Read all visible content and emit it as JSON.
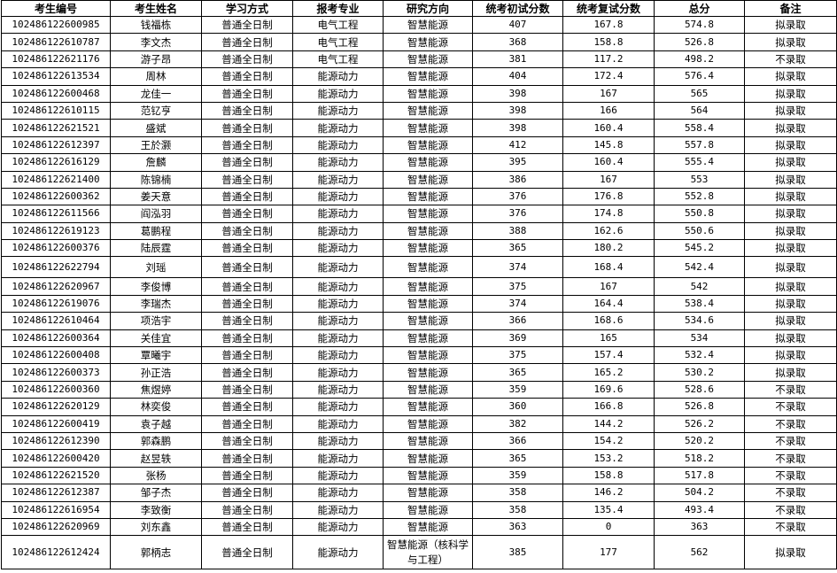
{
  "headers": [
    "考生编号",
    "考生姓名",
    "学习方式",
    "报考专业",
    "研究方向",
    "统考初试分数",
    "统考复试分数",
    "总分",
    "备注"
  ],
  "rows": [
    [
      "102486122600985",
      "钱福栋",
      "普通全日制",
      "电气工程",
      "智慧能源",
      "407",
      "167.8",
      "574.8",
      "拟录取"
    ],
    [
      "102486122610787",
      "李文杰",
      "普通全日制",
      "电气工程",
      "智慧能源",
      "368",
      "158.8",
      "526.8",
      "拟录取"
    ],
    [
      "102486122621176",
      "游子昂",
      "普通全日制",
      "电气工程",
      "智慧能源",
      "381",
      "117.2",
      "498.2",
      "不录取"
    ],
    [
      "102486122613534",
      "周林",
      "普通全日制",
      "能源动力",
      "智慧能源",
      "404",
      "172.4",
      "576.4",
      "拟录取"
    ],
    [
      "102486122600468",
      "龙佳一",
      "普通全日制",
      "能源动力",
      "智慧能源",
      "398",
      "167",
      "565",
      "拟录取"
    ],
    [
      "102486122610115",
      "范钇亨",
      "普通全日制",
      "能源动力",
      "智慧能源",
      "398",
      "166",
      "564",
      "拟录取"
    ],
    [
      "102486122621521",
      "盛斌",
      "普通全日制",
      "能源动力",
      "智慧能源",
      "398",
      "160.4",
      "558.4",
      "拟录取"
    ],
    [
      "102486122612397",
      "王於灏",
      "普通全日制",
      "能源动力",
      "智慧能源",
      "412",
      "145.8",
      "557.8",
      "拟录取"
    ],
    [
      "102486122616129",
      "詹麟",
      "普通全日制",
      "能源动力",
      "智慧能源",
      "395",
      "160.4",
      "555.4",
      "拟录取"
    ],
    [
      "102486122621400",
      "陈锦楠",
      "普通全日制",
      "能源动力",
      "智慧能源",
      "386",
      "167",
      "553",
      "拟录取"
    ],
    [
      "102486122600362",
      "姜天意",
      "普通全日制",
      "能源动力",
      "智慧能源",
      "376",
      "176.8",
      "552.8",
      "拟录取"
    ],
    [
      "102486122611566",
      "阎泓羽",
      "普通全日制",
      "能源动力",
      "智慧能源",
      "376",
      "174.8",
      "550.8",
      "拟录取"
    ],
    [
      "102486122619123",
      "葛鹏程",
      "普通全日制",
      "能源动力",
      "智慧能源",
      "388",
      "162.6",
      "550.6",
      "拟录取"
    ],
    [
      "102486122600376",
      "陆辰霆",
      "普通全日制",
      "能源动力",
      "智慧能源",
      "365",
      "180.2",
      "545.2",
      "拟录取"
    ],
    [
      "102486122622794",
      "刘瑶",
      "普通全日制",
      "能源动力",
      "智慧能源",
      "374",
      "168.4",
      "542.4",
      "拟录取"
    ],
    [
      "102486122620967",
      "李俊博",
      "普通全日制",
      "能源动力",
      "智慧能源",
      "375",
      "167",
      "542",
      "拟录取"
    ],
    [
      "102486122619076",
      "李瑞杰",
      "普通全日制",
      "能源动力",
      "智慧能源",
      "374",
      "164.4",
      "538.4",
      "拟录取"
    ],
    [
      "102486122610464",
      "项浩宇",
      "普通全日制",
      "能源动力",
      "智慧能源",
      "366",
      "168.6",
      "534.6",
      "拟录取"
    ],
    [
      "102486122600364",
      "关佳宜",
      "普通全日制",
      "能源动力",
      "智慧能源",
      "369",
      "165",
      "534",
      "拟录取"
    ],
    [
      "102486122600408",
      "覃曦宇",
      "普通全日制",
      "能源动力",
      "智慧能源",
      "375",
      "157.4",
      "532.4",
      "拟录取"
    ],
    [
      "102486122600373",
      "孙正浩",
      "普通全日制",
      "能源动力",
      "智慧能源",
      "365",
      "165.2",
      "530.2",
      "拟录取"
    ],
    [
      "102486122600360",
      "焦煜婷",
      "普通全日制",
      "能源动力",
      "智慧能源",
      "359",
      "169.6",
      "528.6",
      "不录取"
    ],
    [
      "102486122620129",
      "林奕俊",
      "普通全日制",
      "能源动力",
      "智慧能源",
      "360",
      "166.8",
      "526.8",
      "不录取"
    ],
    [
      "102486122600419",
      "袁子越",
      "普通全日制",
      "能源动力",
      "智慧能源",
      "382",
      "144.2",
      "526.2",
      "不录取"
    ],
    [
      "102486122612390",
      "郭森鹏",
      "普通全日制",
      "能源动力",
      "智慧能源",
      "366",
      "154.2",
      "520.2",
      "不录取"
    ],
    [
      "102486122600420",
      "赵昱轶",
      "普通全日制",
      "能源动力",
      "智慧能源",
      "365",
      "153.2",
      "518.2",
      "不录取"
    ],
    [
      "102486122621520",
      "张杨",
      "普通全日制",
      "能源动力",
      "智慧能源",
      "359",
      "158.8",
      "517.8",
      "不录取"
    ],
    [
      "102486122612387",
      "邹子杰",
      "普通全日制",
      "能源动力",
      "智慧能源",
      "358",
      "146.2",
      "504.2",
      "不录取"
    ],
    [
      "102486122616954",
      "李致衡",
      "普通全日制",
      "能源动力",
      "智慧能源",
      "358",
      "135.4",
      "493.4",
      "不录取"
    ],
    [
      "102486122620969",
      "刘东鑫",
      "普通全日制",
      "能源动力",
      "智慧能源",
      "363",
      "0",
      "363",
      "不录取"
    ],
    [
      "102486122612424",
      "郭柄志",
      "普通全日制",
      "能源动力",
      "智慧能源（核科学与工程）",
      "385",
      "177",
      "562",
      "拟录取"
    ]
  ]
}
